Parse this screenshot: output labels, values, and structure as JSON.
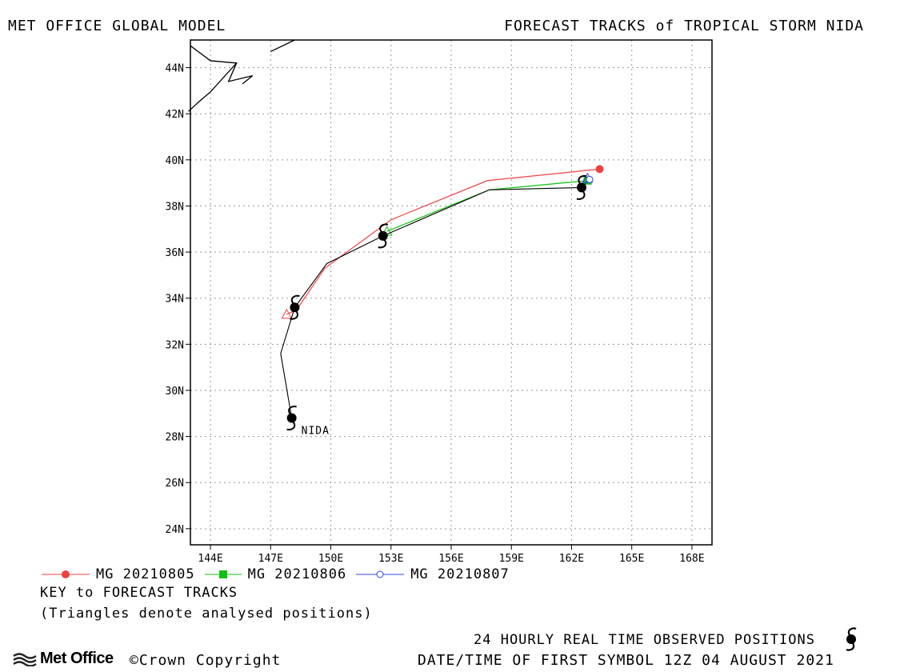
{
  "header": {
    "left_title": "MET OFFICE GLOBAL MODEL",
    "right_title": "FORECAST TRACKS of TROPICAL STORM NIDA"
  },
  "map": {
    "lon_range": [
      143,
      169
    ],
    "lat_range": [
      23.3,
      45.2
    ],
    "x_ticks": [
      {
        "v": 144,
        "label": "144E"
      },
      {
        "v": 147,
        "label": "147E"
      },
      {
        "v": 150,
        "label": "150E"
      },
      {
        "v": 153,
        "label": "153E"
      },
      {
        "v": 156,
        "label": "156E"
      },
      {
        "v": 159,
        "label": "159E"
      },
      {
        "v": 162,
        "label": "162E"
      },
      {
        "v": 165,
        "label": "165E"
      },
      {
        "v": 168,
        "label": "168E"
      }
    ],
    "y_ticks": [
      {
        "v": 24,
        "label": "24N"
      },
      {
        "v": 26,
        "label": "26N"
      },
      {
        "v": 28,
        "label": "28N"
      },
      {
        "v": 30,
        "label": "30N"
      },
      {
        "v": 32,
        "label": "32N"
      },
      {
        "v": 34,
        "label": "34N"
      },
      {
        "v": 36,
        "label": "36N"
      },
      {
        "v": 38,
        "label": "38N"
      },
      {
        "v": 40,
        "label": "40N"
      },
      {
        "v": 42,
        "label": "42N"
      },
      {
        "v": 44,
        "label": "44N"
      }
    ],
    "grid": "dotted",
    "storm_label": "NIDA",
    "coastlines": [
      [
        [
          143.0,
          44.95
        ],
        [
          144.0,
          44.3
        ],
        [
          145.3,
          44.2
        ],
        [
          144.0,
          42.95
        ],
        [
          143.4,
          42.5
        ],
        [
          142.9,
          42.1
        ]
      ],
      [
        [
          145.3,
          44.2
        ],
        [
          144.9,
          43.4
        ],
        [
          146.1,
          43.65
        ],
        [
          145.6,
          43.3
        ]
      ],
      [
        [
          147.0,
          44.7
        ],
        [
          148.2,
          45.2
        ]
      ]
    ],
    "observed_track": [
      [
        148.05,
        28.8
      ],
      [
        147.5,
        31.6
      ],
      [
        148.2,
        33.6
      ],
      [
        149.8,
        35.5
      ],
      [
        152.6,
        36.7
      ],
      [
        157.9,
        38.7
      ],
      [
        162.5,
        38.8
      ]
    ],
    "observed_positions": [
      [
        148.05,
        28.8
      ],
      [
        148.2,
        33.6
      ],
      [
        152.6,
        36.7
      ],
      [
        162.5,
        38.8
      ]
    ]
  },
  "tracks": [
    {
      "name": "MG 20210805",
      "color": "#f04040",
      "marker": "circle-filled",
      "points": [
        [
          147.8,
          33.3
        ],
        [
          148.3,
          33.5
        ],
        [
          149.7,
          35.3
        ],
        [
          153.0,
          37.4
        ],
        [
          157.8,
          39.1
        ],
        [
          163.4,
          39.6
        ]
      ],
      "analysed": [
        147.8,
        33.3
      ]
    },
    {
      "name": "MG 20210806",
      "color": "#10c010",
      "marker": "square-filled",
      "points": [
        [
          152.8,
          36.9
        ],
        [
          157.9,
          38.7
        ],
        [
          162.8,
          39.1
        ]
      ],
      "analysed": [
        152.8,
        36.9
      ]
    },
    {
      "name": "MG 20210807",
      "color": "#3040e0",
      "marker": "circle-open",
      "points": [
        [
          162.6,
          38.9
        ],
        [
          162.9,
          39.15
        ]
      ],
      "analysed": [
        162.8,
        39.2
      ]
    }
  ],
  "key": {
    "title": "KEY to FORECAST TRACKS",
    "note": "(Triangles denote analysed positions)"
  },
  "footer": {
    "logo_text": "Met Office",
    "copyright": "©Crown Copyright",
    "observed_label": "24 HOURLY REAL TIME OBSERVED POSITIONS",
    "datetime": "DATE/TIME OF FIRST SYMBOL 12Z 04 AUGUST 2021"
  }
}
